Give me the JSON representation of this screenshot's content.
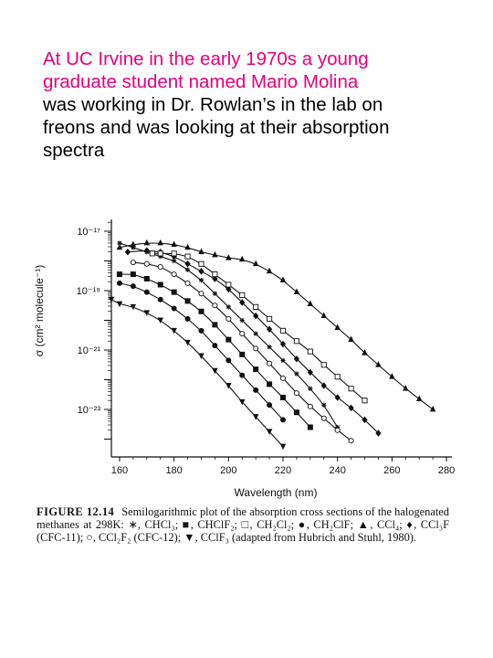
{
  "intro": {
    "line1": "At UC Irvine in the early 1970s a young",
    "line2": "graduate student named Mario Molina",
    "line3": "was working in Dr. Rowlan’s in the lab on",
    "line4": "freons and was looking at their absorption",
    "line5": "spectra",
    "highlight_color": "#e6007e"
  },
  "chart_data": {
    "type": "scatter",
    "scale_y": "log",
    "xlabel": "Wavelength (nm)",
    "ylabel": "σ (cm² molecule⁻¹)",
    "xlim": [
      157,
      282
    ],
    "ylim": [
      -24.6,
      -16.6
    ],
    "x_ticks": [
      "160",
      "180",
      "200",
      "220",
      "240",
      "260",
      "280"
    ],
    "y_ticks": [
      "10⁻¹⁷",
      "10⁻¹⁹",
      "10⁻²¹",
      "10⁻²³"
    ],
    "y_tick_exponents": [
      -17,
      -19,
      -21,
      -23
    ],
    "grid": false,
    "series": [
      {
        "name": "CCl₄",
        "marker": "triangle",
        "x": [
          160,
          165,
          170,
          175,
          180,
          185,
          190,
          195,
          200,
          205,
          210,
          215,
          220,
          225,
          230,
          235,
          240,
          245,
          250,
          255,
          260,
          265,
          270,
          275
        ],
        "y_log10": [
          -17.55,
          -17.45,
          -17.4,
          -17.4,
          -17.45,
          -17.55,
          -17.7,
          -17.8,
          -17.9,
          -17.95,
          -18.1,
          -18.35,
          -18.65,
          -19.05,
          -19.45,
          -19.85,
          -20.25,
          -20.65,
          -21.1,
          -21.5,
          -21.9,
          -22.3,
          -22.65,
          -23.0
        ]
      },
      {
        "name": "CCl₃F (CFC-11)",
        "marker": "diamond",
        "x": [
          163,
          170,
          175,
          180,
          185,
          190,
          195,
          200,
          205,
          210,
          215,
          220,
          225,
          230,
          235,
          240,
          245,
          250,
          255
        ],
        "y_log10": [
          -17.7,
          -17.65,
          -17.7,
          -17.85,
          -18.1,
          -18.35,
          -18.6,
          -18.95,
          -19.4,
          -19.85,
          -20.3,
          -20.8,
          -21.3,
          -21.75,
          -22.2,
          -22.6,
          -22.95,
          -23.35,
          -23.8
        ]
      },
      {
        "name": "CHCl₃",
        "marker": "asterisk",
        "x": [
          160,
          165,
          170,
          175,
          180,
          185,
          190,
          195,
          200,
          205,
          210,
          215,
          220,
          225,
          230,
          235,
          240
        ],
        "y_log10": [
          -17.4,
          -17.55,
          -17.7,
          -17.85,
          -18.0,
          -18.3,
          -18.65,
          -19.1,
          -19.55,
          -20.0,
          -20.45,
          -20.9,
          -21.35,
          -21.8,
          -22.3,
          -22.85,
          -23.6
        ]
      },
      {
        "name": "CH₂Cl₂",
        "marker": "square-open",
        "x": [
          172,
          175,
          180,
          185,
          190,
          195,
          200,
          205,
          210,
          215,
          220,
          225,
          230,
          235,
          240,
          245,
          250
        ],
        "y_log10": [
          -17.75,
          -17.75,
          -17.75,
          -17.85,
          -18.1,
          -18.45,
          -18.8,
          -19.15,
          -19.55,
          -19.95,
          -20.35,
          -20.7,
          -21.05,
          -21.5,
          -21.9,
          -22.3,
          -22.7
        ]
      },
      {
        "name": "CCl₂F₂ (CFC-12)",
        "marker": "circle-open",
        "x": [
          165,
          170,
          175,
          180,
          185,
          190,
          195,
          200,
          205,
          210,
          215,
          220,
          225,
          230,
          235,
          240,
          245
        ],
        "y_log10": [
          -18.05,
          -18.1,
          -18.2,
          -18.45,
          -18.75,
          -19.1,
          -19.5,
          -19.95,
          -20.45,
          -20.95,
          -21.45,
          -21.95,
          -22.45,
          -22.9,
          -23.3,
          -23.7,
          -24.05
        ]
      },
      {
        "name": "CHClF₂",
        "marker": "square",
        "x": [
          160,
          165,
          170,
          175,
          180,
          185,
          190,
          195,
          200,
          205,
          210,
          215,
          220,
          225,
          230
        ],
        "y_log10": [
          -18.45,
          -18.45,
          -18.6,
          -18.8,
          -19.05,
          -19.35,
          -19.7,
          -20.15,
          -20.65,
          -21.15,
          -21.65,
          -22.15,
          -22.6,
          -23.1,
          -23.6
        ]
      },
      {
        "name": "CH₂ClF",
        "marker": "circle",
        "x": [
          160,
          165,
          170,
          175,
          180,
          185,
          190,
          195,
          200,
          205,
          210,
          215,
          220
        ],
        "y_log10": [
          -18.75,
          -18.85,
          -19.05,
          -19.3,
          -19.6,
          -19.95,
          -20.35,
          -20.85,
          -21.35,
          -21.85,
          -22.35,
          -22.85,
          -23.35
        ]
      },
      {
        "name": "CClF₃",
        "marker": "triangle-down",
        "x": [
          157,
          160,
          165,
          170,
          175,
          180,
          185,
          190,
          195,
          200,
          205,
          210,
          215,
          220
        ],
        "y_log10": [
          -19.3,
          -19.45,
          -19.55,
          -19.75,
          -20.0,
          -20.35,
          -20.75,
          -21.2,
          -21.7,
          -22.2,
          -22.75,
          -23.25,
          -23.75,
          -24.25
        ]
      }
    ]
  },
  "caption": {
    "head": "FIGURE 12.14",
    "text": "Semilogarithmic plot of the absorption cross sections of the halogenated methanes at 298K: ∗, CHCl₃; ■, CHClF₂; □, CH₂Cl₂; ●, CH₂ClF; ▲, CCl₄; ♦, CCl₃F (CFC-11); ○, CCl₂F₂ (CFC-12); ▼, CClF₃ (adapted from Hubrich and Stuhl, 1980)."
  }
}
